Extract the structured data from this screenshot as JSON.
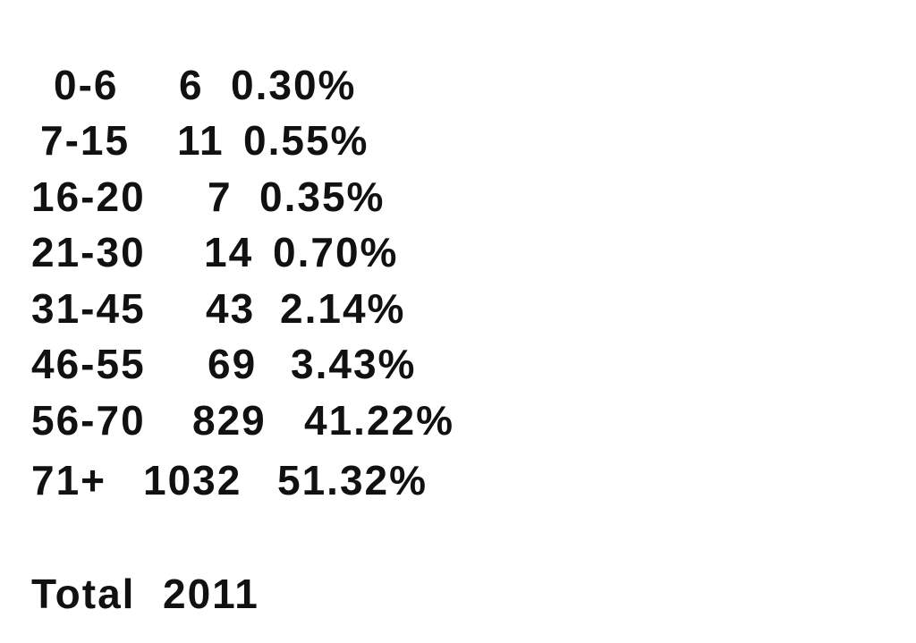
{
  "rows": [
    {
      "range": "0-6",
      "count": "6",
      "percent": "0.30%"
    },
    {
      "range": "7-15",
      "count": "11",
      "percent": "0.55%"
    },
    {
      "range": "16-20",
      "count": "7",
      "percent": "0.35%"
    },
    {
      "range": "21-30",
      "count": "14",
      "percent": "0.70%"
    },
    {
      "range": "31-45",
      "count": "43",
      "percent": "2.14%"
    },
    {
      "range": "46-55",
      "count": "69",
      "percent": "3.43%"
    },
    {
      "range": "56-70",
      "count": "829",
      "percent": "41.22%"
    },
    {
      "range": "71+",
      "count": "1032",
      "percent": "51.32%"
    }
  ],
  "total": {
    "label": "Total",
    "value": "2011"
  }
}
